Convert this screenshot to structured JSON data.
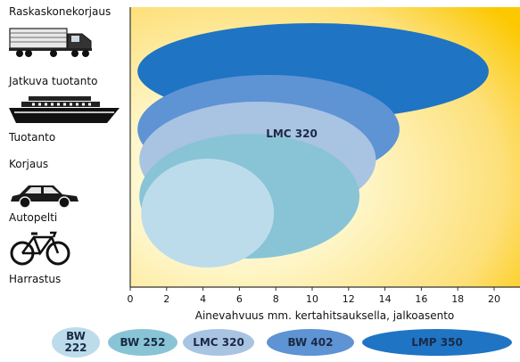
{
  "chart_data": {
    "type": "bubble-ellipses",
    "xlabel": "Ainevahvuus mm. kertahitsauksella, jalkoasento",
    "xlim": [
      0,
      21
    ],
    "xticks": [
      0,
      2,
      4,
      6,
      8,
      10,
      12,
      14,
      16,
      18,
      20
    ],
    "y_categories": [
      "Raskaskonekorjaus",
      "Jatkuva tuotanto",
      "Tuotanto",
      "Korjaus",
      "Autopelti",
      "Harrastus"
    ],
    "series": [
      {
        "name": "LMP 350",
        "x_range": [
          0.4,
          19.7
        ],
        "y_range": [
          "Raskaskonekorjaus",
          "Tuotanto"
        ],
        "color": "#1f74c4"
      },
      {
        "name": "BW 402",
        "x_range": [
          0.4,
          14.8
        ],
        "y_range": [
          "Jatkuva tuotanto",
          "Korjaus"
        ],
        "color": "#5e93d4",
        "label": "LMC 320"
      },
      {
        "name": "LMC 320",
        "x_range": [
          0.5,
          13.5
        ],
        "y_range": [
          "Tuotanto",
          "Autopelti"
        ],
        "color": "#a9c3e3"
      },
      {
        "name": "BW 252",
        "x_range": [
          0.5,
          12.6
        ],
        "y_range": [
          "Korjaus",
          "Autopelti"
        ],
        "color": "#88c4d6"
      },
      {
        "name": "BW 222",
        "x_range": [
          0.6,
          7.9
        ],
        "y_range": [
          "Korjaus",
          "Harrastus"
        ],
        "color": "#bcdcec"
      }
    ],
    "background_gradient": {
      "center": "#fffef0",
      "edge": "#fcc800"
    },
    "legend": [
      {
        "label": "BW\n222",
        "color": "#bcdcec"
      },
      {
        "label": "BW 252",
        "color": "#88c4d6"
      },
      {
        "label": "LMC 320",
        "color": "#a9c3e3"
      },
      {
        "label": "BW 402",
        "color": "#5e93d4"
      },
      {
        "label": "LMP 350",
        "color": "#1f74c4"
      }
    ]
  },
  "categories_panel": {
    "labels": [
      "Raskaskonekorjaus",
      "Jatkuva tuotanto",
      "Tuotanto",
      "Korjaus",
      "Autopelti",
      "Harrastus"
    ],
    "icons": [
      "truck-icon",
      "ship-icon",
      "car-icon",
      "bicycle-icon"
    ]
  }
}
